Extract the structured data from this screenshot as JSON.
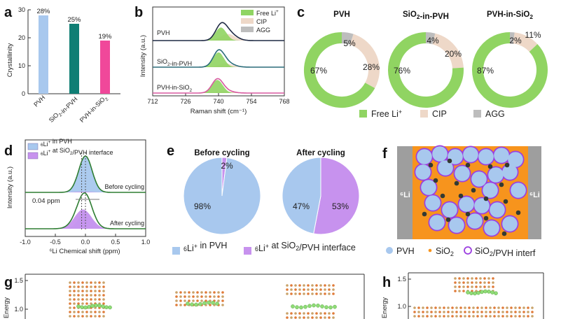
{
  "panels": {
    "a": "a",
    "b": "b",
    "c": "c",
    "d": "d",
    "e": "e",
    "f": "f",
    "g": "g",
    "h": "h"
  },
  "colors": {
    "free": "#90d462",
    "cip": "#eed8c8",
    "agg": "#bdbdbd",
    "pvh": "#a8c8ee",
    "interface": "#c792ee",
    "bar_pvh": "#a8c8ee",
    "bar_sio2_in_pvh": "#0f7e74",
    "bar_pvh_in_sio2": "#f0489a",
    "sio2_orange": "#f7941d",
    "pvh_border": "#9b3ee0"
  },
  "chart_data": [
    {
      "id": "a",
      "type": "bar",
      "categories": [
        "PVH",
        "SiO₂-in-PVH",
        "PVH-in-SiO₂"
      ],
      "values": [
        28,
        25,
        19
      ],
      "data_labels": [
        "28%",
        "25%",
        "19%"
      ],
      "ylabel": "Crystallinity",
      "ylim": [
        0,
        30
      ],
      "yticks": [
        "0",
        "10",
        "20",
        "30"
      ]
    },
    {
      "id": "b",
      "type": "line",
      "xlabel": "Raman shift (cm⁻¹)",
      "ylabel": "Intensity (a.u.)",
      "xlim": [
        712,
        768
      ],
      "xticks": [
        "712",
        "726",
        "740",
        "754",
        "768"
      ],
      "legend": [
        "Free Li⁺",
        "CIP",
        "AGG"
      ],
      "legend_placement": "top-right",
      "series": [
        {
          "name": "PVH",
          "peak_center": 741.5,
          "free_amp": 0.55,
          "cip_amp": 0.28,
          "agg_amp": 0.05
        },
        {
          "name": "SiO₂-in-PVH",
          "peak_center": 740.5,
          "free_amp": 0.62,
          "cip_amp": 0.16,
          "agg_amp": 0.03
        },
        {
          "name": "PVH-in-SiO₂",
          "peak_center": 740.0,
          "free_amp": 0.55,
          "cip_amp": 0.08,
          "agg_amp": 0.02
        }
      ]
    },
    {
      "id": "c",
      "type": "pie",
      "legend": [
        "Free Li⁺",
        "CIP",
        "AGG"
      ],
      "legend_placement": "bottom",
      "rings": [
        {
          "title": "PVH",
          "values": [
            67,
            28,
            5
          ],
          "labels": [
            "67%",
            "28%",
            "5%"
          ]
        },
        {
          "title": "SiO₂-in-PVH",
          "values": [
            76,
            20,
            4
          ],
          "labels": [
            "76%",
            "20%",
            "4%"
          ]
        },
        {
          "title": "PVH-in-SiO₂",
          "values": [
            87,
            11,
            2
          ],
          "labels": [
            "87%",
            "11%",
            "2%"
          ]
        }
      ]
    },
    {
      "id": "d",
      "type": "line",
      "xlabel": "⁶Li Chemical shift (ppm)",
      "ylabel": "Intensity (a.u.)",
      "xlim": [
        -1.0,
        1.0
      ],
      "xticks": [
        "-1.0",
        "-0.5",
        "0.0",
        "0.5",
        "1.0"
      ],
      "legend": [
        "⁶Li⁺ in PVH",
        "⁶Li⁺ at SiO₂/PVH interface"
      ],
      "legend_placement": "top-left",
      "annotation": "0.04 ppm",
      "series": [
        {
          "name": "Before cycling",
          "pvh_center": 0.0,
          "interface_center": -0.04,
          "pvh_amp": 0.98,
          "interface_amp": 0.02
        },
        {
          "name": "After cycling",
          "pvh_center": 0.0,
          "interface_center": -0.04,
          "pvh_amp": 0.47,
          "interface_amp": 0.53
        }
      ]
    },
    {
      "id": "e",
      "type": "pie",
      "legend": [
        "⁶Li⁺ in PVH",
        "⁶Li⁺ at SiO₂/PVH interface"
      ],
      "legend_placement": "bottom",
      "pies": [
        {
          "title": "Before cycling",
          "values": [
            98,
            2
          ],
          "labels": [
            "98%",
            "2%"
          ]
        },
        {
          "title": "After cycling",
          "values": [
            47,
            53
          ],
          "labels": [
            "47%",
            "53%"
          ]
        }
      ]
    },
    {
      "id": "g",
      "type": "line",
      "ylabel": "Energy",
      "yticks": [
        "1.5",
        "1.0"
      ]
    },
    {
      "id": "h",
      "type": "line",
      "ylabel": "Energy",
      "yticks": [
        "1.5",
        "1.0"
      ]
    }
  ],
  "schematic_f": {
    "left_label": "⁶Li",
    "right_label": "⁶Li",
    "legend": [
      "PVH",
      "SiO₂",
      "SiO₂/PVH interf"
    ]
  }
}
